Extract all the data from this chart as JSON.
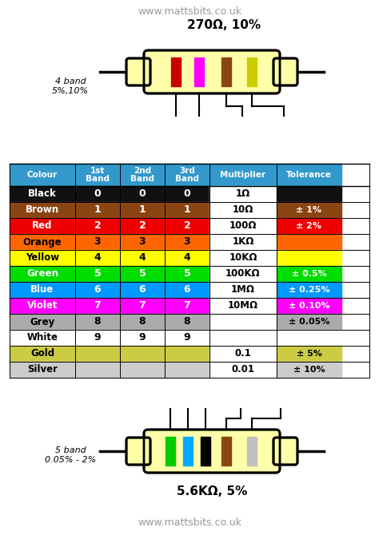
{
  "title_url": "www.mattsbits.co.uk",
  "resistor1_label": "270Ω, 10%",
  "resistor1_bands": [
    "#cc0000",
    "#ff00ff",
    "#8B4513",
    "#cccc00"
  ],
  "resistor1_note": "4 band\n5%,10%",
  "resistor2_label": "5.6KΩ, 5%",
  "resistor2_bands": [
    "#00cc00",
    "#00aaff",
    "#000000",
    "#8B4513",
    "#c0c0c0"
  ],
  "resistor2_note": "5 band\n0.05% - 2%",
  "body_color": "#ffffaa",
  "header_bg": "#3399cc",
  "header_fg": "#ffffff",
  "table_rows": [
    {
      "colour": "Black",
      "bg": "#111111",
      "fg": "#ffffff",
      "b1": "0",
      "b2": "0",
      "b3": "0",
      "mult": "1Ω",
      "tol": ""
    },
    {
      "colour": "Brown",
      "bg": "#8B4513",
      "fg": "#ffffff",
      "b1": "1",
      "b2": "1",
      "b3": "1",
      "mult": "10Ω",
      "tol": "± 1%"
    },
    {
      "colour": "Red",
      "bg": "#ee0000",
      "fg": "#ffffff",
      "b1": "2",
      "b2": "2",
      "b3": "2",
      "mult": "100Ω",
      "tol": "± 2%"
    },
    {
      "colour": "Orange",
      "bg": "#ff6600",
      "fg": "#000000",
      "b1": "3",
      "b2": "3",
      "b3": "3",
      "mult": "1KΩ",
      "tol": ""
    },
    {
      "colour": "Yellow",
      "bg": "#ffff00",
      "fg": "#000000",
      "b1": "4",
      "b2": "4",
      "b3": "4",
      "mult": "10KΩ",
      "tol": ""
    },
    {
      "colour": "Green",
      "bg": "#00dd00",
      "fg": "#ffffff",
      "b1": "5",
      "b2": "5",
      "b3": "5",
      "mult": "100KΩ",
      "tol": "± 0.5%"
    },
    {
      "colour": "Blue",
      "bg": "#0099ff",
      "fg": "#ffffff",
      "b1": "6",
      "b2": "6",
      "b3": "6",
      "mult": "1MΩ",
      "tol": "± 0.25%"
    },
    {
      "colour": "Violet",
      "bg": "#ff00ff",
      "fg": "#ffffff",
      "b1": "7",
      "b2": "7",
      "b3": "7",
      "mult": "10MΩ",
      "tol": "± 0.10%"
    },
    {
      "colour": "Grey",
      "bg": "#aaaaaa",
      "fg": "#000000",
      "b1": "8",
      "b2": "8",
      "b3": "8",
      "mult": "",
      "tol": "± 0.05%"
    },
    {
      "colour": "White",
      "bg": "#ffffff",
      "fg": "#000000",
      "b1": "9",
      "b2": "9",
      "b3": "9",
      "mult": "",
      "tol": ""
    },
    {
      "colour": "Gold",
      "bg": "#cccc44",
      "fg": "#000000",
      "b1": "",
      "b2": "",
      "b3": "",
      "mult": "0.1",
      "tol": "± 5%"
    },
    {
      "colour": "Silver",
      "bg": "#cccccc",
      "fg": "#000000",
      "b1": "",
      "b2": "",
      "b3": "",
      "mult": "0.01",
      "tol": "± 10%"
    }
  ]
}
